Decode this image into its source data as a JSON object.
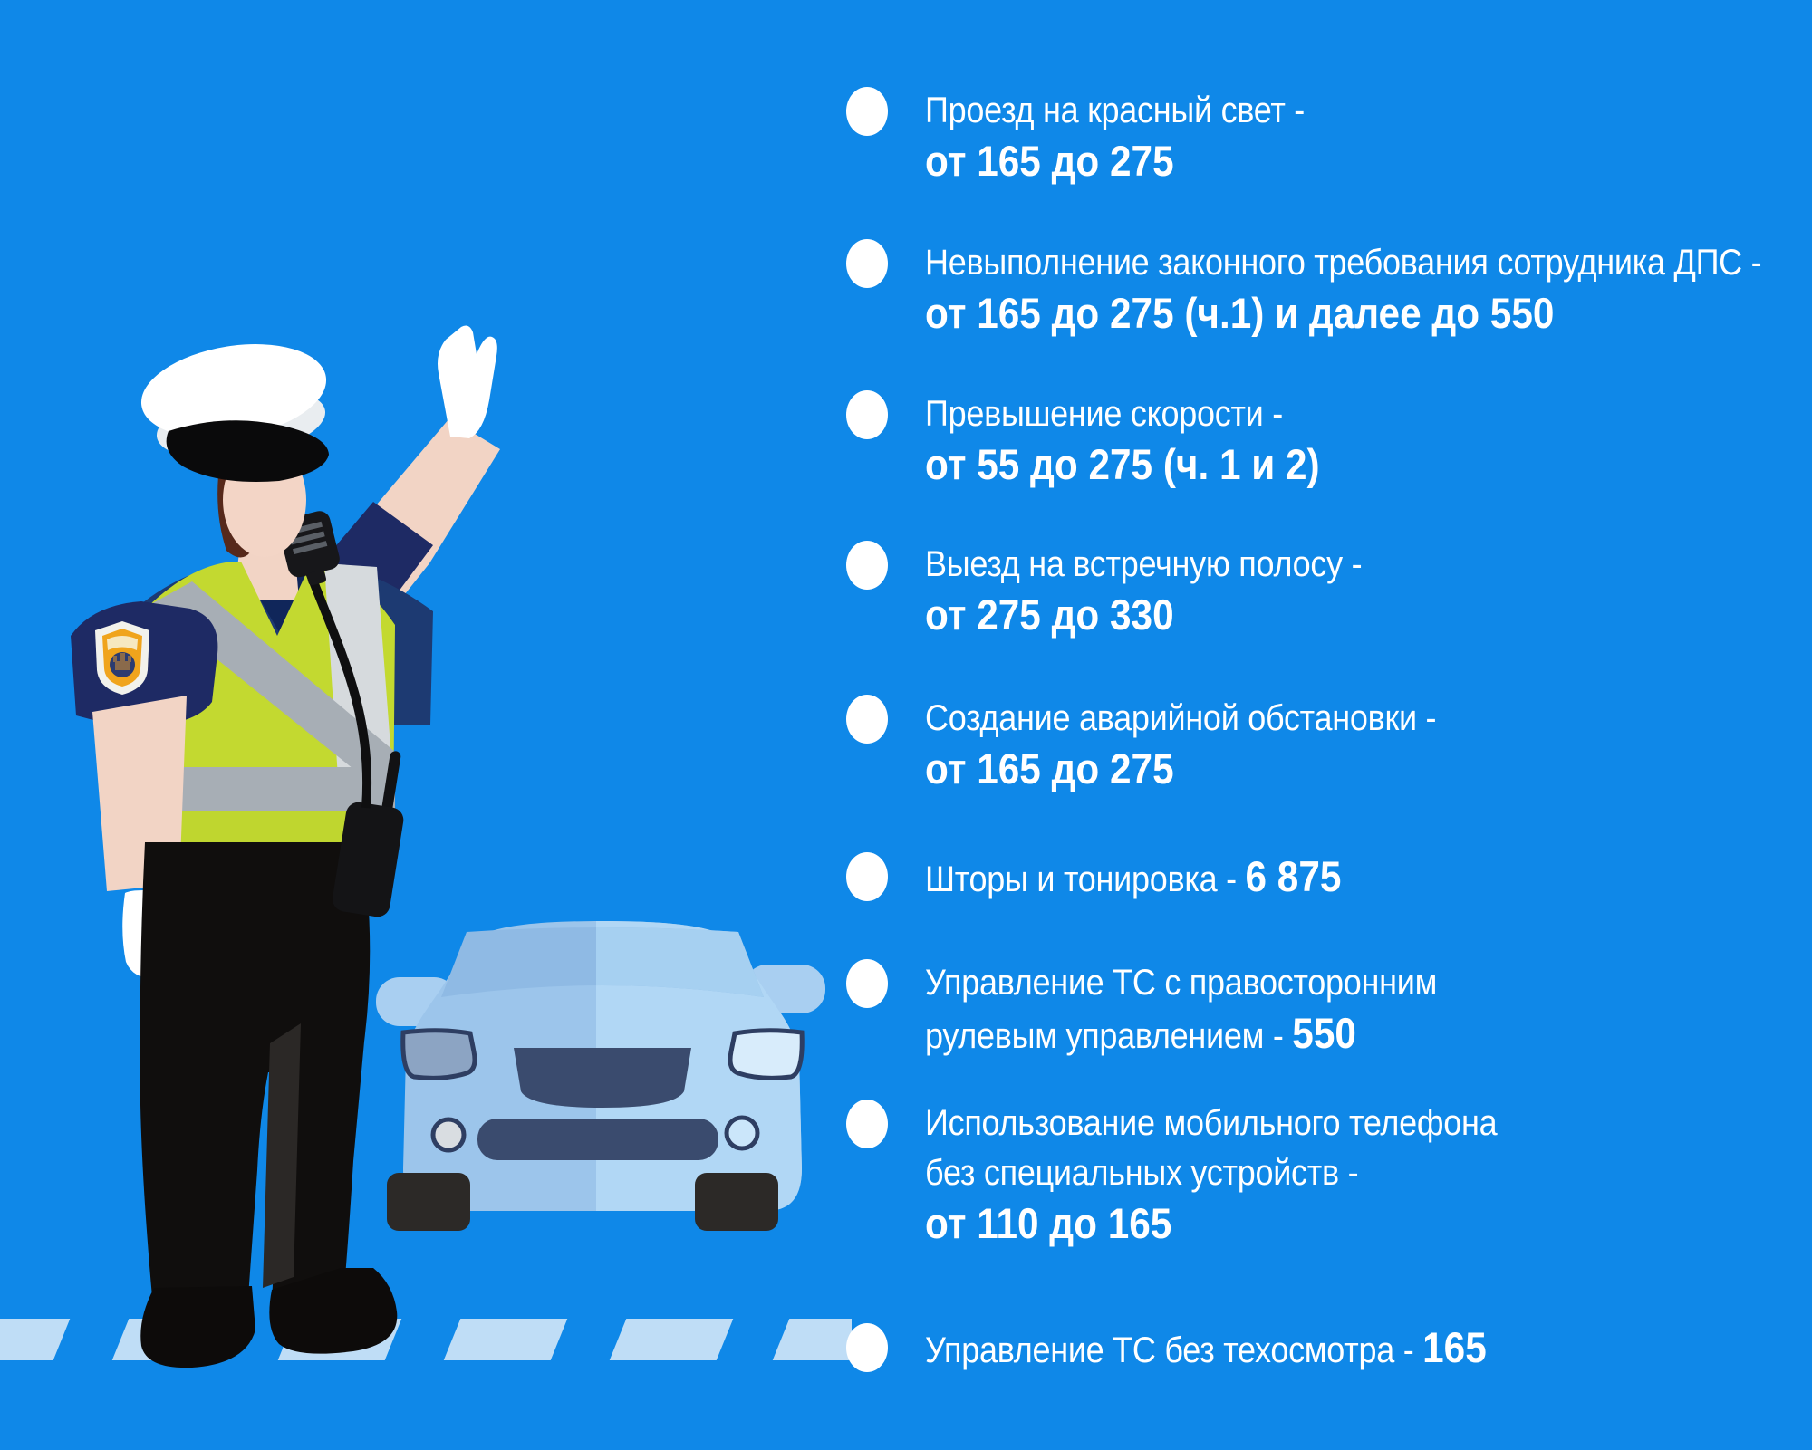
{
  "title": "Traffic fines infographic",
  "colors": {
    "background": "#0F88E8",
    "crosswalk_stripe": "#BFDDF6",
    "text": "#FFFFFF",
    "car_body_left": "#9CC5EB",
    "car_body_right": "#B1D7F5",
    "car_trim_navy": "#3A4B6E",
    "vest_green": "#C3D930",
    "uniform_navy": "#1D3A72",
    "patch_orange": "#F0A41C"
  },
  "bullet_icon": "white-oval-bullet",
  "illustrations": {
    "officer": "traffic-police-officer-raising-hand",
    "car": "light-blue-car-front-view",
    "crosswalk": "pedestrian-crossing-stripes"
  },
  "fines": {
    "items": [
      {
        "lines": [
          [
            {
              "t": "Проезд на красный свет -",
              "b": 0
            }
          ],
          [
            {
              "t": "от 165 до 275",
              "b": 1
            }
          ]
        ]
      },
      {
        "lines": [
          [
            {
              "t": "Невыполнение законного требования сотрудника ДПС -",
              "b": 0
            }
          ],
          [
            {
              "t": "от 165 до 275 (ч.1) и далее до 550",
              "b": 1
            }
          ]
        ]
      },
      {
        "lines": [
          [
            {
              "t": "Превышение скорости -",
              "b": 0
            }
          ],
          [
            {
              "t": "от 55 до 275 (ч. 1 и 2)",
              "b": 1
            }
          ]
        ]
      },
      {
        "lines": [
          [
            {
              "t": "Выезд на встречную полосу -",
              "b": 0
            }
          ],
          [
            {
              "t": "от 275 до 330",
              "b": 1
            }
          ]
        ]
      },
      {
        "lines": [
          [
            {
              "t": "Создание аварийной обстановки -",
              "b": 0
            }
          ],
          [
            {
              "t": "от 165 до 275",
              "b": 1
            }
          ]
        ]
      },
      {
        "lines": [
          [
            {
              "t": "Шторы и тонировка - ",
              "b": 0
            },
            {
              "t": "6 875",
              "b": 1
            }
          ]
        ]
      },
      {
        "lines": [
          [
            {
              "t": "Управление ТС с правосторонним",
              "b": 0
            }
          ],
          [
            {
              "t": "рулевым управлением - ",
              "b": 0
            },
            {
              "t": "550",
              "b": 1
            }
          ]
        ]
      },
      {
        "lines": [
          [
            {
              "t": "Использование мобильного телефона",
              "b": 0
            }
          ],
          [
            {
              "t": "без специальных устройств -",
              "b": 0
            }
          ],
          [
            {
              "t": "от 110 до 165",
              "b": 1
            }
          ]
        ]
      },
      {
        "lines": [
          [
            {
              "t": "Управление ТС без техосмотра - ",
              "b": 0
            },
            {
              "t": "165",
              "b": 1
            }
          ]
        ]
      }
    ]
  }
}
